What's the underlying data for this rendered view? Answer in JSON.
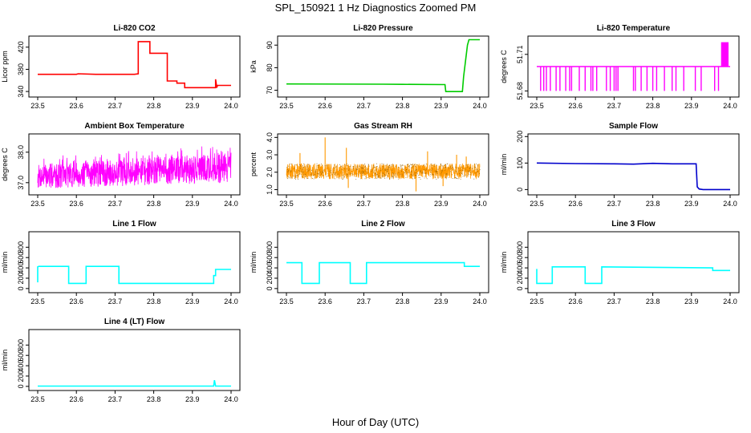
{
  "figure": {
    "title": "SPL_150921  1 Hz Diagnostics Zoomed PM",
    "xlabel": "Hour of Day (UTC)"
  },
  "chart_data": [
    {
      "id": "co2",
      "type": "line",
      "title": "Li-820 CO2",
      "ylabel": "Licor ppm",
      "color": "#ff0000",
      "xlim": [
        23.5,
        24.0
      ],
      "ylim": [
        330,
        440
      ],
      "xticks": [
        "23.5",
        "23.6",
        "23.7",
        "23.8",
        "23.9",
        "24.0"
      ],
      "yticks": [
        "340",
        "380",
        "420"
      ],
      "series": [
        {
          "x": [
            23.5,
            23.6,
            23.605,
            23.65,
            23.75,
            23.76,
            23.76,
            23.79,
            23.79,
            23.835,
            23.835,
            23.86,
            23.86,
            23.88,
            23.88,
            23.93,
            23.96,
            23.96,
            23.963,
            23.965,
            24.0
          ],
          "y": [
            371,
            371,
            372,
            371,
            371,
            372,
            430,
            430,
            409,
            409,
            359,
            359,
            355,
            355,
            347,
            347,
            347,
            362,
            347,
            351,
            351
          ]
        }
      ]
    },
    {
      "id": "pressure",
      "type": "line",
      "title": "Li-820 Pressure",
      "ylabel": "kPa",
      "color": "#00cc00",
      "xlim": [
        23.5,
        24.0
      ],
      "ylim": [
        67,
        94
      ],
      "xticks": [
        "23.5",
        "23.6",
        "23.7",
        "23.8",
        "23.9",
        "24.0"
      ],
      "yticks": [
        "70",
        "80",
        "90"
      ],
      "series": [
        {
          "x": [
            23.5,
            23.75,
            23.8,
            23.91,
            23.912,
            23.955,
            23.958,
            23.963,
            23.968,
            23.972,
            24.0
          ],
          "y": [
            72.8,
            72.7,
            72.6,
            72.5,
            69.4,
            69.4,
            76,
            83,
            90,
            92.4,
            92.4
          ]
        }
      ]
    },
    {
      "id": "licor-temp",
      "type": "line",
      "title": "Li-820 Temperature",
      "ylabel": "degrees C",
      "color": "#ff00ff",
      "xlim": [
        23.5,
        24.0
      ],
      "ylim": [
        51.675,
        51.725
      ],
      "xticks": [
        "23.5",
        "23.6",
        "23.7",
        "23.8",
        "23.9",
        "24.0"
      ],
      "yticks": [
        "51.68",
        "51.71"
      ],
      "baseline": 51.7,
      "low": 51.68,
      "high": 51.72,
      "dips": [
        23.51,
        23.518,
        23.525,
        23.535,
        23.55,
        23.56,
        23.575,
        23.585,
        23.59,
        23.61,
        23.625,
        23.64,
        23.645,
        23.655,
        23.68,
        23.69,
        23.7,
        23.705,
        23.71,
        23.75,
        23.755,
        23.77,
        23.785,
        23.8,
        23.81,
        23.83,
        23.85,
        23.86,
        23.88,
        23.91,
        23.925,
        23.96,
        23.97,
        23.98
      ]
    },
    {
      "id": "box-temp",
      "type": "line",
      "title": "Ambient Box Temperature",
      "ylabel": "degrees C",
      "color": "#ff00ff",
      "xlim": [
        23.5,
        24.0
      ],
      "ylim": [
        36.6,
        38.6
      ],
      "xticks": [
        "23.5",
        "23.6",
        "23.7",
        "23.8",
        "23.9",
        "24.0"
      ],
      "yticks": [
        "37.0",
        "38.0"
      ],
      "band": {
        "low_start": 36.8,
        "low_end": 37.0,
        "high_start": 37.6,
        "high_end": 38.0
      }
    },
    {
      "id": "rh",
      "type": "line",
      "title": "Gas Stream RH",
      "ylabel": "percent",
      "color": "#ff9900",
      "xlim": [
        23.5,
        24.0
      ],
      "ylim": [
        0.7,
        4.2
      ],
      "xticks": [
        "23.5",
        "23.6",
        "23.7",
        "23.8",
        "23.9",
        "24.0"
      ],
      "yticks": [
        "1.0",
        "2.0",
        "3.0",
        "4.0"
      ],
      "band": {
        "low": 1.6,
        "high": 2.5
      },
      "spikes": [
        {
          "x": 23.6,
          "y": 4.0
        },
        {
          "x": 23.655,
          "y": 3.4
        },
        {
          "x": 23.535,
          "y": 3.1
        },
        {
          "x": 23.865,
          "y": 3.2
        },
        {
          "x": 23.94,
          "y": 3.0
        },
        {
          "x": 23.965,
          "y": 2.9
        },
        {
          "x": 23.835,
          "y": 0.9
        },
        {
          "x": 23.905,
          "y": 1.2
        },
        {
          "x": 23.66,
          "y": 1.1
        }
      ]
    },
    {
      "id": "sample-flow",
      "type": "line",
      "title": "Sample Flow",
      "ylabel": "ml/min",
      "color": "#0000cc",
      "xlim": [
        23.5,
        24.0
      ],
      "ylim": [
        -20,
        210
      ],
      "xticks": [
        "23.5",
        "23.6",
        "23.7",
        "23.8",
        "23.9",
        "24.0"
      ],
      "yticks": [
        "0",
        "100",
        "200"
      ],
      "series": [
        {
          "x": [
            23.5,
            23.6,
            23.7,
            23.75,
            23.8,
            23.85,
            23.912,
            23.915,
            23.92,
            23.93,
            24.0
          ],
          "y": [
            100,
            98,
            97,
            96,
            99,
            97,
            97,
            10,
            2,
            0,
            0
          ]
        }
      ]
    },
    {
      "id": "line1-flow",
      "type": "line",
      "title": "Line 1 Flow",
      "ylabel": "ml/min",
      "color": "#00ffff",
      "xlim": [
        23.5,
        24.0
      ],
      "ylim": [
        -80,
        1100
      ],
      "xticks": [
        "23.5",
        "23.6",
        "23.7",
        "23.8",
        "23.9",
        "24.0"
      ],
      "yticks": [
        "0",
        "200",
        "400",
        "600",
        "800"
      ],
      "series": [
        {
          "x": [
            23.5,
            23.5,
            23.503,
            23.58,
            23.58,
            23.625,
            23.625,
            23.71,
            23.71,
            23.955,
            23.955,
            23.96,
            23.96,
            24.0
          ],
          "y": [
            120,
            420,
            430,
            430,
            100,
            100,
            430,
            430,
            100,
            100,
            250,
            250,
            370,
            370
          ]
        }
      ]
    },
    {
      "id": "line2-flow",
      "type": "line",
      "title": "Line 2 Flow",
      "ylabel": "ml/min",
      "color": "#00ffff",
      "xlim": [
        23.5,
        24.0
      ],
      "ylim": [
        -80,
        1100
      ],
      "xticks": [
        "23.5",
        "23.6",
        "23.7",
        "23.8",
        "23.9",
        "24.0"
      ],
      "yticks": [
        "0",
        "200",
        "400",
        "600",
        "800"
      ],
      "series": [
        {
          "x": [
            23.5,
            23.54,
            23.54,
            23.585,
            23.585,
            23.665,
            23.665,
            23.707,
            23.707,
            23.96,
            23.96,
            24.0
          ],
          "y": [
            500,
            500,
            100,
            100,
            500,
            500,
            100,
            100,
            500,
            500,
            430,
            430
          ]
        }
      ]
    },
    {
      "id": "line3-flow",
      "type": "line",
      "title": "Line 3 Flow",
      "ylabel": "ml/min",
      "color": "#00ffff",
      "xlim": [
        23.5,
        24.0
      ],
      "ylim": [
        -80,
        1100
      ],
      "xticks": [
        "23.5",
        "23.6",
        "23.7",
        "23.8",
        "23.9",
        "24.0"
      ],
      "yticks": [
        "0",
        "200",
        "400",
        "600",
        "800"
      ],
      "series": [
        {
          "x": [
            23.5,
            23.5,
            23.503,
            23.54,
            23.54,
            23.625,
            23.625,
            23.668,
            23.668,
            23.955,
            23.955,
            24.0
          ],
          "y": [
            380,
            100,
            100,
            100,
            420,
            420,
            100,
            100,
            420,
            400,
            350,
            350
          ]
        }
      ]
    },
    {
      "id": "line4-flow",
      "type": "line",
      "title": "Line 4 (LT) Flow",
      "ylabel": "ml/min",
      "color": "#00ffff",
      "xlim": [
        23.5,
        24.0
      ],
      "ylim": [
        -80,
        1100
      ],
      "xticks": [
        "23.5",
        "23.6",
        "23.7",
        "23.8",
        "23.9",
        "24.0"
      ],
      "yticks": [
        "0",
        "200",
        "400",
        "600",
        "800"
      ],
      "series": [
        {
          "x": [
            23.5,
            23.95,
            23.955,
            23.957,
            23.96,
            24.0
          ],
          "y": [
            5,
            5,
            5,
            120,
            5,
            5
          ]
        }
      ]
    }
  ]
}
